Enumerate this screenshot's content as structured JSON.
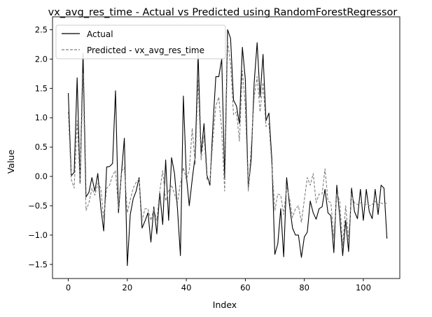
{
  "chart_data": {
    "type": "line",
    "title": "vx_avg_res_time - Actual vs Predicted using RandomForestRegressor",
    "xlabel": "Index",
    "ylabel": "Value",
    "xlim": [
      -5.35,
      112.35
    ],
    "ylim": [
      -1.74,
      2.72
    ],
    "xticks": [
      0,
      20,
      40,
      60,
      80,
      100
    ],
    "yticks": [
      -1.5,
      -1.0,
      -0.5,
      0.0,
      0.5,
      1.0,
      1.5,
      2.0,
      2.5
    ],
    "ytick_labels": [
      "−1.5",
      "−1.0",
      "−0.5",
      "0.0",
      "0.5",
      "1.0",
      "1.5",
      "2.0",
      "2.5"
    ],
    "grid": false,
    "legend_position": "top-left",
    "series": [
      {
        "name": "Actual",
        "color": "#000000",
        "dash": "solid",
        "values": [
          1.42,
          0.01,
          0.07,
          1.68,
          -0.12,
          2.1,
          -0.35,
          -0.27,
          -0.02,
          -0.25,
          0.05,
          -0.52,
          -0.93,
          0.16,
          0.17,
          0.22,
          1.46,
          -0.62,
          0.05,
          0.65,
          -1.52,
          -0.65,
          -0.38,
          -0.25,
          -0.02,
          -0.88,
          -0.76,
          -0.62,
          -1.12,
          -0.52,
          -0.98,
          -0.28,
          -0.82,
          0.28,
          -0.75,
          0.32,
          0.05,
          -0.55,
          -1.35,
          1.37,
          0.02,
          -0.5,
          -0.05,
          0.35,
          2.08,
          0.38,
          0.9,
          0.02,
          -0.15,
          0.85,
          1.7,
          1.7,
          2.0,
          -0.03,
          2.5,
          2.35,
          1.3,
          1.2,
          0.9,
          2.2,
          1.65,
          -0.2,
          0.3,
          1.6,
          2.28,
          1.35,
          2.08,
          0.95,
          1.08,
          0.28,
          -1.33,
          -1.15,
          -0.55,
          -1.37,
          -0.02,
          -0.5,
          -0.88,
          -1.0,
          -1.0,
          -1.38,
          -1.03,
          -0.95,
          -0.42,
          -0.62,
          -0.73,
          -0.55,
          -0.52,
          -0.22,
          -0.62,
          -0.67,
          -1.3,
          -0.15,
          -0.68,
          -1.35,
          -0.75,
          -1.28,
          -0.2,
          -0.6,
          -0.72,
          -0.22,
          -0.75,
          -0.22,
          -0.6,
          -0.72,
          -0.22,
          -0.65,
          -0.15,
          -0.2,
          -1.06
        ]
      },
      {
        "name": "Predicted - vx_avg_res_time",
        "color": "#808080",
        "dash": "dashed",
        "values": [
          1.1,
          -0.05,
          -0.2,
          0.95,
          -0.12,
          1.75,
          -0.58,
          -0.45,
          -0.2,
          -0.32,
          -0.12,
          -0.2,
          -0.72,
          -0.2,
          -0.15,
          0.02,
          0.1,
          -0.55,
          0.08,
          0.15,
          -0.62,
          -0.4,
          -0.2,
          -0.1,
          -0.05,
          -0.75,
          -0.55,
          -0.55,
          -0.75,
          -0.55,
          -0.75,
          -0.25,
          0.1,
          -0.42,
          -0.25,
          -0.15,
          -0.3,
          -0.45,
          -0.12,
          0.15,
          -0.05,
          0.1,
          0.82,
          0.2,
          1.65,
          0.28,
          0.7,
          -0.05,
          -0.1,
          0.62,
          1.2,
          1.35,
          0.8,
          -0.25,
          2.3,
          1.92,
          1.05,
          1.1,
          0.6,
          1.8,
          1.2,
          -0.25,
          0.5,
          1.35,
          1.7,
          1.1,
          1.6,
          0.85,
          0.9,
          0.18,
          -0.58,
          -0.3,
          -0.32,
          -0.65,
          -0.18,
          -0.38,
          -0.7,
          -0.55,
          -0.5,
          -0.78,
          -0.4,
          -0.02,
          -0.15,
          0.05,
          -0.45,
          -0.3,
          -0.3,
          0.13,
          -0.42,
          -0.45,
          -1.05,
          -0.28,
          -0.42,
          -1.18,
          -0.5,
          -1.08,
          -0.3,
          -0.45,
          -0.48,
          -0.45,
          -0.48,
          -0.48,
          -0.5,
          -0.48,
          -0.42,
          -0.48,
          -0.45,
          -0.48,
          -0.45
        ]
      }
    ]
  }
}
